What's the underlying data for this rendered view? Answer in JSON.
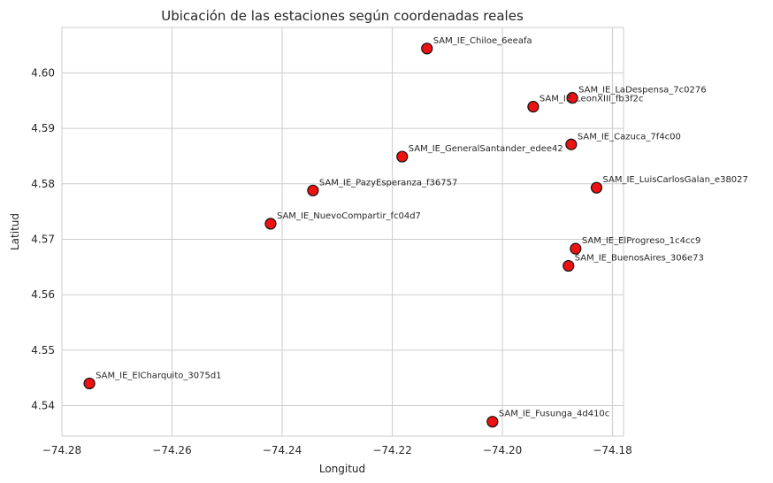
{
  "chart_data": {
    "type": "scatter",
    "title": "Ubicación de las estaciones según coordenadas reales",
    "xlabel": "Longitud",
    "ylabel": "Latitud",
    "xlim": [
      -74.28,
      -74.178
    ],
    "ylim": [
      4.5345,
      4.6082
    ],
    "xticks": [
      -74.28,
      -74.26,
      -74.24,
      -74.22,
      -74.2,
      -74.18
    ],
    "xtick_labels": [
      "−74.28",
      "−74.26",
      "−74.24",
      "−74.22",
      "−74.20",
      "−74.18"
    ],
    "yticks": [
      4.54,
      4.55,
      4.56,
      4.57,
      4.58,
      4.59,
      4.6
    ],
    "ytick_labels": [
      "4.54",
      "4.55",
      "4.56",
      "4.57",
      "4.58",
      "4.59",
      "4.60"
    ],
    "grid": true,
    "marker_color": "#ee1111",
    "marker_edge": "#111111",
    "points": [
      {
        "label": "SAM_IE_Chiloe_6eeafa",
        "x": -74.2137,
        "y": 4.6044
      },
      {
        "label": "SAM_IE_LaDespensa_7c0276",
        "x": -74.1873,
        "y": 4.5955
      },
      {
        "label": "SAM_IE_LeonXIII_fb3f2c",
        "x": -74.1944,
        "y": 4.5939
      },
      {
        "label": "SAM_IE_Cazuca_7f4c00",
        "x": -74.1875,
        "y": 4.5871
      },
      {
        "label": "SAM_IE_GeneralSantander_edee42",
        "x": -74.2182,
        "y": 4.5849
      },
      {
        "label": "SAM_IE_LuisCarlosGalan_e38027",
        "x": -74.1829,
        "y": 4.5793
      },
      {
        "label": "SAM_IE_PazyEsperanza_f36757",
        "x": -74.2344,
        "y": 4.5788
      },
      {
        "label": "SAM_IE_NuevoCompartir_fc04d7",
        "x": -74.2421,
        "y": 4.5728
      },
      {
        "label": "SAM_IE_ElProgreso_1c4cc9",
        "x": -74.1867,
        "y": 4.5683
      },
      {
        "label": "SAM_IE_BuenosAires_306e73",
        "x": -74.188,
        "y": 4.5652
      },
      {
        "label": "SAM_IE_ElCharquito_3075d1",
        "x": -74.275,
        "y": 4.544
      },
      {
        "label": "SAM_IE_Fusunga_4d410c",
        "x": -74.2018,
        "y": 4.5371
      }
    ]
  }
}
